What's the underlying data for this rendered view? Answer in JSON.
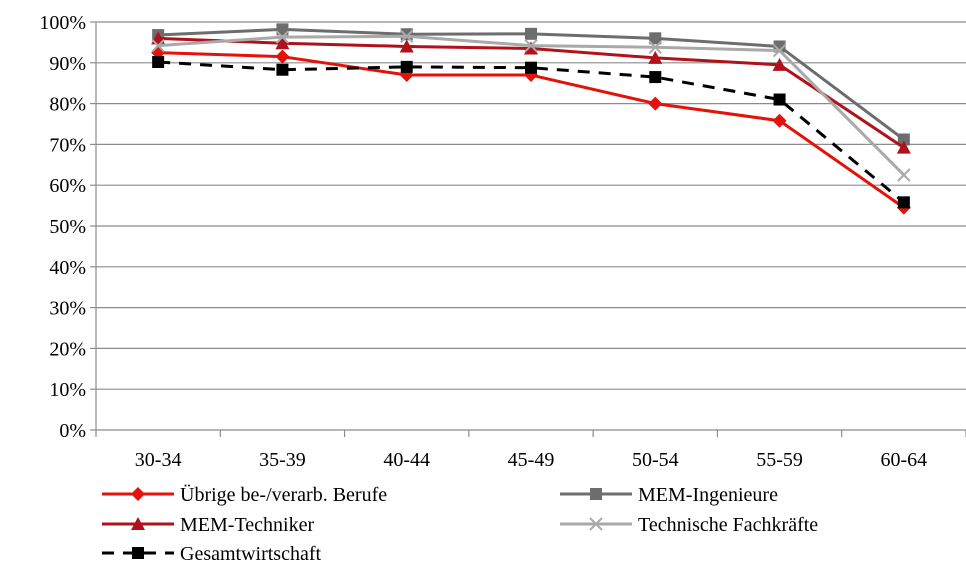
{
  "chart_data": {
    "type": "line",
    "title": "",
    "xlabel": "",
    "ylabel": "",
    "categories": [
      "30-34",
      "35-39",
      "40-44",
      "45-49",
      "50-54",
      "55-59",
      "60-64"
    ],
    "yticks": [
      "0%",
      "10%",
      "20%",
      "30%",
      "40%",
      "50%",
      "60%",
      "70%",
      "80%",
      "90%",
      "100%"
    ],
    "ylim": [
      0,
      100
    ],
    "grid": true,
    "legend_position": "bottom",
    "series": [
      {
        "name": "Übrige be-/verarb. Berufe",
        "values": [
          92.5,
          91.5,
          87,
          87,
          80,
          75.8,
          54.5
        ],
        "color": "#e3120b",
        "marker": "diamond",
        "dash": "solid"
      },
      {
        "name": "MEM-Ingenieure",
        "values": [
          96.8,
          98.2,
          97,
          97.1,
          96,
          94,
          71.2
        ],
        "color": "#6d6d6d",
        "marker": "square",
        "dash": "solid"
      },
      {
        "name": "MEM-Techniker",
        "values": [
          96,
          94.8,
          94,
          93.5,
          91.2,
          89.5,
          69.2
        ],
        "color": "#b0121b",
        "marker": "triangle",
        "dash": "solid"
      },
      {
        "name": "Technische Fachkräfte",
        "values": [
          94.2,
          96.3,
          96.5,
          94.2,
          93.8,
          93,
          62.5
        ],
        "color": "#a9a9a9",
        "marker": "x",
        "dash": "solid"
      },
      {
        "name": "Gesamtwirtschaft",
        "values": [
          90.2,
          88.3,
          89,
          88.8,
          86.5,
          81,
          55.8
        ],
        "color": "#000000",
        "marker": "square",
        "dash": "dashed"
      }
    ]
  }
}
